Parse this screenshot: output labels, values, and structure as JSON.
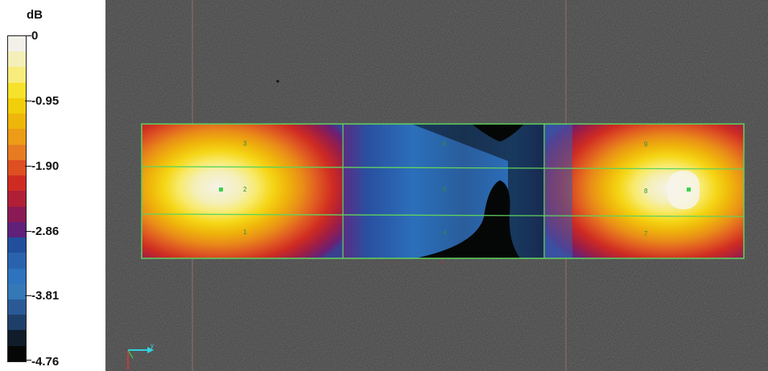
{
  "legend": {
    "unit": "dB",
    "labels": [
      "0",
      "-0.95",
      "-1.90",
      "-2.86",
      "-3.81",
      "-4.76"
    ],
    "swatches": [
      "#f3f0ea",
      "#f4efb8",
      "#f8ec7d",
      "#f7e22b",
      "#f2cf0b",
      "#efb60a",
      "#ec9c16",
      "#e67b22",
      "#de4f22",
      "#cf2b22",
      "#b01f36",
      "#8a1a55",
      "#61207a",
      "#214f9c",
      "#2a63ad",
      "#2d73bd",
      "#3478b8",
      "#2a5a96",
      "#1e3f6a",
      "#101c2a",
      "#050707"
    ]
  },
  "grid": {
    "line_color": "#5fd35c",
    "zone_labels": [
      "3",
      "2",
      "1",
      "6",
      "5",
      "4",
      "9",
      "8",
      "7"
    ]
  },
  "axis": {
    "y_label": "y"
  }
}
